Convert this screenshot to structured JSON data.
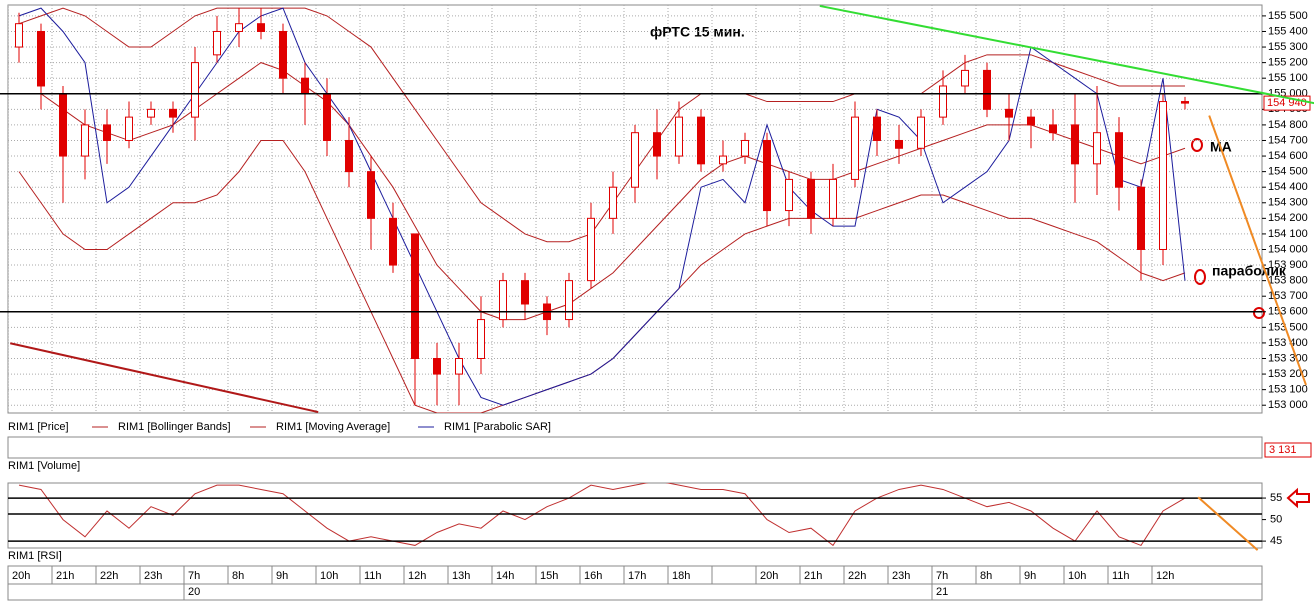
{
  "chart_data": [
    {
      "type": "candlestick",
      "title": "фРТС  15 мин.",
      "categories": [
        "20h",
        null,
        "21h",
        null,
        "22h",
        null,
        "23h",
        null,
        "7h",
        null,
        "8h",
        null,
        "9h",
        null,
        "10h",
        null,
        "11h",
        null,
        "12h",
        null,
        "13h",
        null,
        "14h",
        null,
        "15h",
        null,
        "16h",
        null,
        "17h",
        null,
        "18h",
        null,
        null,
        null,
        "20h",
        null,
        "21h",
        null,
        "22h",
        null,
        "23h",
        null,
        "7h",
        null,
        "8h",
        null,
        "9h",
        null,
        "10h",
        null,
        "11h",
        null,
        "12h",
        null
      ],
      "dates": [
        null,
        null,
        null,
        null,
        null,
        null,
        null,
        null,
        "20",
        null,
        null,
        null,
        null,
        null,
        null,
        null,
        null,
        null,
        null,
        null,
        null,
        null,
        null,
        null,
        null,
        null,
        null,
        null,
        null,
        null,
        null,
        null,
        null,
        null,
        null,
        null,
        null,
        null,
        null,
        null,
        null,
        null,
        "21",
        null,
        null,
        null,
        null,
        null,
        null,
        null,
        null,
        null,
        null,
        null
      ],
      "series": [
        {
          "name": "RIM1 [Price]",
          "color": "#e00000",
          "open": [
            155300,
            155400,
            155000,
            154600,
            154800,
            154700,
            154850,
            154900,
            154850,
            155250,
            155400,
            155450,
            155400,
            155100,
            155000,
            154700,
            154500,
            154200,
            154100,
            153300,
            153200,
            153300,
            153550,
            153800,
            153650,
            153550,
            153800,
            154200,
            154400,
            154750,
            154600,
            154850,
            154550,
            154600,
            154700,
            154250,
            154450,
            154200,
            154450,
            154850,
            154700,
            154650,
            154850,
            155050,
            155150,
            154900,
            154850,
            154800,
            154800,
            154550,
            154750,
            154400,
            154000,
            154950
          ],
          "high": [
            155520,
            155450,
            155050,
            154900,
            154900,
            154950,
            154950,
            154950,
            155300,
            155500,
            155550,
            155550,
            155450,
            155200,
            155100,
            154850,
            154600,
            154300,
            154100,
            153400,
            153400,
            153700,
            153850,
            153850,
            153700,
            153850,
            154300,
            154500,
            154800,
            154900,
            154950,
            154900,
            154700,
            154750,
            154750,
            154500,
            154500,
            154550,
            154950,
            154900,
            154800,
            154900,
            155150,
            155250,
            155200,
            155000,
            154900,
            154900,
            155000,
            155050,
            154850,
            154450,
            155000,
            154980
          ],
          "low": [
            155200,
            154900,
            154300,
            154450,
            154550,
            154650,
            154800,
            154750,
            154700,
            155200,
            155300,
            155350,
            155000,
            154800,
            154600,
            154400,
            154000,
            153850,
            153000,
            153000,
            153000,
            153200,
            153500,
            153550,
            153450,
            153500,
            153750,
            154100,
            154300,
            154450,
            154550,
            154500,
            154500,
            154550,
            154150,
            154150,
            154100,
            154150,
            154400,
            154600,
            154550,
            154600,
            154800,
            155000,
            154850,
            154700,
            154650,
            154700,
            154300,
            154350,
            154250,
            153800,
            153900,
            154900
          ],
          "close": [
            155450,
            155050,
            154600,
            154800,
            154700,
            154850,
            154900,
            154850,
            155200,
            155400,
            155450,
            155400,
            155100,
            155000,
            154700,
            154500,
            154200,
            153900,
            153300,
            153200,
            153300,
            153550,
            153800,
            153650,
            153550,
            153800,
            154200,
            154400,
            154750,
            154600,
            154850,
            154550,
            154600,
            154700,
            154250,
            154450,
            154200,
            154450,
            154850,
            154700,
            154650,
            154850,
            155050,
            155150,
            154900,
            154850,
            154800,
            154750,
            154550,
            154750,
            154400,
            154000,
            154950,
            154940
          ],
          "last_close_label": "154 940"
        },
        {
          "name": "RIM1 [Bollinger Bands]",
          "color": "#b52020",
          "upper": [
            155450,
            155500,
            155550,
            155500,
            155400,
            155300,
            155300,
            155400,
            155500,
            155550,
            155550,
            155550,
            155550,
            155550,
            155500,
            155400,
            155300,
            155100,
            154900,
            154700,
            154500,
            154300,
            154200,
            154100,
            154050,
            154050,
            154100,
            154300,
            154500,
            154700,
            154900,
            155000,
            155000,
            155000,
            154950,
            154950,
            154950,
            154950,
            155000,
            155000,
            155000,
            155000,
            155100,
            155200,
            155250,
            155250,
            155250,
            155200,
            155150,
            155100,
            155050,
            155050,
            155050,
            155050
          ],
          "lower": [
            154500,
            154300,
            154100,
            154000,
            154000,
            154100,
            154200,
            154300,
            154300,
            154350,
            154500,
            154700,
            154700,
            154500,
            154200,
            153900,
            153600,
            153300,
            153000,
            152950,
            152950,
            152950,
            153000,
            153050,
            153100,
            153150,
            153200,
            153300,
            153450,
            153600,
            153750,
            153900,
            154000,
            154100,
            154150,
            154200,
            154200,
            154200,
            154200,
            154250,
            154300,
            154350,
            154350,
            154300,
            154250,
            154200,
            154200,
            154150,
            154100,
            154050,
            153950,
            153850,
            153800,
            153850
          ]
        },
        {
          "name": "RIM1 [Moving Average]",
          "color": "#b52020",
          "values": [
            155000,
            155000,
            154900,
            154800,
            154750,
            154700,
            154750,
            154800,
            154900,
            155000,
            155100,
            155200,
            155150,
            155050,
            154950,
            154800,
            154600,
            154400,
            154150,
            153900,
            153750,
            153600,
            153550,
            153550,
            153600,
            153650,
            153750,
            153850,
            154000,
            154150,
            154300,
            154450,
            154550,
            154600,
            154550,
            154500,
            154450,
            154450,
            154500,
            154550,
            154600,
            154650,
            154700,
            154750,
            154800,
            154800,
            154800,
            154750,
            154700,
            154650,
            154600,
            154550,
            154600,
            154650
          ]
        },
        {
          "name": "RIM1 [Parabolic SAR]",
          "color": "#1c1c9c",
          "values": [
            155500,
            155550,
            155400,
            155200,
            154300,
            154400,
            154600,
            154800,
            155000,
            155200,
            155400,
            155500,
            155550,
            155200,
            155000,
            154800,
            154500,
            154200,
            153900,
            153600,
            153300,
            153050,
            153000,
            153050,
            153100,
            153150,
            153200,
            153300,
            153450,
            153600,
            153750,
            154400,
            154450,
            154300,
            154800,
            154400,
            154250,
            154150,
            154150,
            154900,
            154850,
            154700,
            154300,
            154400,
            154500,
            154700,
            155300,
            155200,
            155100,
            155000,
            154450,
            154400,
            155100,
            153800
          ]
        }
      ],
      "ylim": [
        152950,
        155570
      ],
      "yticks": [
        {
          "value": 153000,
          "label": "153 000"
        },
        {
          "value": 153100,
          "label": "153 100"
        },
        {
          "value": 153200,
          "label": "153 200"
        },
        {
          "value": 153300,
          "label": "153 300"
        },
        {
          "value": 153400,
          "label": "153 400"
        },
        {
          "value": 153500,
          "label": "153 500"
        },
        {
          "value": 153600,
          "label": "153 600"
        },
        {
          "value": 153700,
          "label": "153 700"
        },
        {
          "value": 153800,
          "label": "153 800"
        },
        {
          "value": 153900,
          "label": "153 900"
        },
        {
          "value": 154000,
          "label": "154 000"
        },
        {
          "value": 154100,
          "label": "154 100"
        },
        {
          "value": 154200,
          "label": "154 200"
        },
        {
          "value": 154300,
          "label": "154 300"
        },
        {
          "value": 154400,
          "label": "154 400"
        },
        {
          "value": 154500,
          "label": "154 500"
        },
        {
          "value": 154600,
          "label": "154 600"
        },
        {
          "value": 154700,
          "label": "154 700"
        },
        {
          "value": 154800,
          "label": "154 800"
        },
        {
          "value": 154900,
          "label": "154 900"
        },
        {
          "value": 155000,
          "label": "155 000"
        },
        {
          "value": 155100,
          "label": "155 100"
        },
        {
          "value": 155200,
          "label": "155 200"
        },
        {
          "value": 155300,
          "label": "155 300"
        },
        {
          "value": 155400,
          "label": "155 400"
        },
        {
          "value": 155500,
          "label": "155 500"
        }
      ],
      "grid": true,
      "levels": [
        155000,
        153600
      ],
      "trendlines": [
        {
          "color": "#33dd33",
          "x": [
            36.4,
            59
          ],
          "y": [
            155564,
            154936
          ]
        },
        {
          "color": "#f08a24",
          "x": [
            54.1,
            58.5
          ],
          "y": [
            154860,
            153130
          ]
        },
        {
          "color": "#b01818",
          "x": [
            -0.4,
            13.6
          ],
          "y": [
            153398,
            152956
          ]
        }
      ],
      "annotations": [
        "MA",
        "параболик"
      ]
    },
    {
      "type": "volume",
      "title": "RIM1 [Volume]",
      "values": [
        3131
      ],
      "value_labels": [
        "3 131"
      ]
    },
    {
      "type": "line",
      "title": "RIM1 [RSI]",
      "color": "#c03030",
      "values": [
        58,
        57,
        50,
        46,
        52,
        48,
        53,
        51,
        56,
        58,
        58,
        57,
        56,
        52,
        48,
        45,
        46,
        45,
        44,
        47,
        49,
        48,
        52,
        50,
        53,
        55,
        58,
        57,
        58,
        59,
        58,
        57,
        57,
        56,
        50,
        47,
        48,
        44,
        52,
        55,
        57,
        58,
        57,
        55,
        53,
        54,
        52,
        48,
        45,
        52,
        46,
        44,
        52,
        55
      ],
      "ylim": [
        43.4,
        58.5
      ],
      "yticks": [
        45,
        50,
        55
      ],
      "levels": [
        55,
        51.3,
        45
      ],
      "trendlines": [
        {
          "color": "#f08a24",
          "x": [
            53.6,
            56.3
          ],
          "y": [
            55.2,
            42.9
          ]
        }
      ]
    }
  ]
}
